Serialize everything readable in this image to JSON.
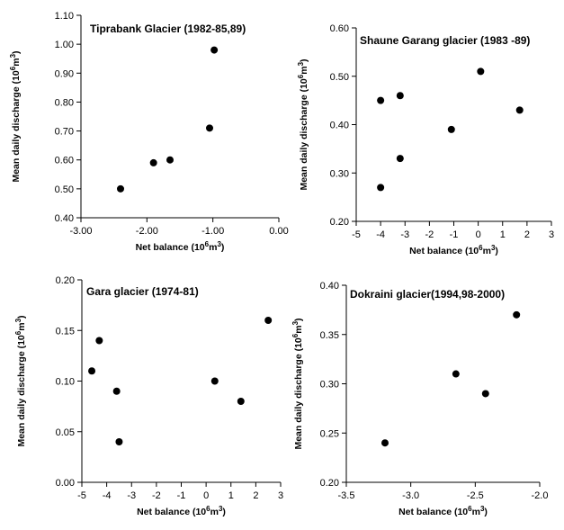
{
  "chart_data": [
    {
      "type": "scatter",
      "title": "Tiprabank Glacier (1982-85,89)",
      "xlabel": "Net balance (10^6m^3)",
      "ylabel": "Mean daily discharge (10^6m^3)",
      "xlim": [
        -3.0,
        0.0
      ],
      "ylim": [
        0.4,
        1.1
      ],
      "xticks": [
        "-3.00",
        "-2.00",
        "-1.00",
        "0.00"
      ],
      "xtick_values": [
        -3.0,
        -2.0,
        -1.0,
        0.0
      ],
      "yticks": [
        "0.40",
        "0.50",
        "0.60",
        "0.70",
        "0.80",
        "0.90",
        "1.00",
        "1.10"
      ],
      "ytick_values": [
        0.4,
        0.5,
        0.6,
        0.7,
        0.8,
        0.9,
        1.0,
        1.1
      ],
      "points": [
        {
          "x": -2.4,
          "y": 0.5
        },
        {
          "x": -1.9,
          "y": 0.59
        },
        {
          "x": -1.65,
          "y": 0.6
        },
        {
          "x": -1.05,
          "y": 0.71
        },
        {
          "x": -0.98,
          "y": 0.98
        }
      ]
    },
    {
      "type": "scatter",
      "title": "Shaune Garang glacier (1983 -89)",
      "xlabel": "Net balance (10^6m^3)",
      "ylabel": "Mean daily discharge (10^6m^3)",
      "xlim": [
        -5,
        3
      ],
      "ylim": [
        0.2,
        0.6
      ],
      "xticks": [
        "-5",
        "-4",
        "-3",
        "-2",
        "-1",
        "0",
        "1",
        "2",
        "3"
      ],
      "xtick_values": [
        -5,
        -4,
        -3,
        -2,
        -1,
        0,
        1,
        2,
        3
      ],
      "yticks": [
        "0.20",
        "0.30",
        "0.40",
        "0.50",
        "0.60"
      ],
      "ytick_values": [
        0.2,
        0.3,
        0.4,
        0.5,
        0.6
      ],
      "points": [
        {
          "x": -4.0,
          "y": 0.45
        },
        {
          "x": -4.0,
          "y": 0.27
        },
        {
          "x": -3.2,
          "y": 0.46
        },
        {
          "x": -3.2,
          "y": 0.33
        },
        {
          "x": -1.1,
          "y": 0.39
        },
        {
          "x": 0.1,
          "y": 0.51
        },
        {
          "x": 1.7,
          "y": 0.43
        }
      ]
    },
    {
      "type": "scatter",
      "title": "Gara glacier (1974-81)",
      "xlabel": "Net balance (10^6m^3)",
      "ylabel": "Mean daily discharge (10^6m^3)",
      "xlim": [
        -5,
        3
      ],
      "ylim": [
        0.0,
        0.2
      ],
      "xticks": [
        "-5",
        "-4",
        "-3",
        "-2",
        "-1",
        "0",
        "1",
        "2",
        "3"
      ],
      "xtick_values": [
        -5,
        -4,
        -3,
        -2,
        -1,
        0,
        1,
        2,
        3
      ],
      "yticks": [
        "0.00",
        "0.05",
        "0.10",
        "0.15",
        "0.20"
      ],
      "ytick_values": [
        0.0,
        0.05,
        0.1,
        0.15,
        0.2
      ],
      "points": [
        {
          "x": -4.6,
          "y": 0.11
        },
        {
          "x": -4.3,
          "y": 0.14
        },
        {
          "x": -3.6,
          "y": 0.09
        },
        {
          "x": -3.5,
          "y": 0.04
        },
        {
          "x": 0.35,
          "y": 0.1
        },
        {
          "x": 1.4,
          "y": 0.08
        },
        {
          "x": 2.5,
          "y": 0.16
        }
      ]
    },
    {
      "type": "scatter",
      "title": "Dokraini glacier(1994,98-2000)",
      "xlabel": "Net balance (10^6m^3)",
      "ylabel": "Mean daily discharge (10^6m^3)",
      "xlim": [
        -3.5,
        -2.0
      ],
      "ylim": [
        0.2,
        0.4
      ],
      "xticks": [
        "-3.5",
        "-3.0",
        "-2.5",
        "-2.0"
      ],
      "xtick_values": [
        -3.5,
        -3.0,
        -2.5,
        -2.0
      ],
      "yticks": [
        "0.20",
        "0.25",
        "0.30",
        "0.35",
        "0.40"
      ],
      "ytick_values": [
        0.2,
        0.25,
        0.3,
        0.35,
        0.4
      ],
      "points": [
        {
          "x": -3.2,
          "y": 0.24
        },
        {
          "x": -2.65,
          "y": 0.31
        },
        {
          "x": -2.42,
          "y": 0.29
        },
        {
          "x": -2.18,
          "y": 0.37
        }
      ]
    }
  ]
}
